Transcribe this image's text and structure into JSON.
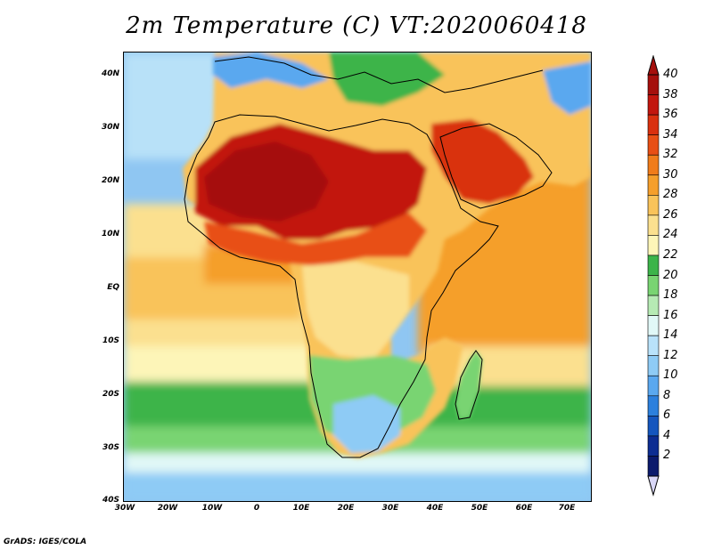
{
  "title": "2m Temperature (C) VT:2020060418",
  "credit": "GrADS: IGES/COLA",
  "axes": {
    "lat_labels": [
      "40N",
      "30N",
      "20N",
      "10N",
      "EQ",
      "10S",
      "20S",
      "30S",
      "40S"
    ],
    "lon_labels": [
      "30W",
      "20W",
      "10W",
      "0",
      "10E",
      "20E",
      "30E",
      "40E",
      "50E",
      "60E",
      "70E"
    ],
    "lat_range": [
      -40,
      45
    ],
    "lon_range": [
      -30,
      75
    ]
  },
  "colorbar": {
    "labels": [
      "40",
      "38",
      "36",
      "34",
      "32",
      "30",
      "28",
      "26",
      "24",
      "22",
      "20",
      "18",
      "16",
      "14",
      "12",
      "10",
      "8",
      "6",
      "4",
      "2"
    ],
    "colors": [
      "#a50f0c",
      "#c2160e",
      "#d9300f",
      "#e84f15",
      "#f07c1b",
      "#f59f2c",
      "#f9c35a",
      "#fbe08f",
      "#fdf5b8",
      "#3cb44a",
      "#79d472",
      "#b6eab4",
      "#e1f8f7",
      "#b9e2fa",
      "#8ecbf5",
      "#5aa8ef",
      "#2c80dd",
      "#1556be",
      "#0d2d92",
      "#0b1a6c"
    ],
    "min_arrow_color": "#d9d7f7"
  },
  "map": {
    "variable": "2m Temperature",
    "units": "C",
    "valid_time": "2020060418",
    "region": "Africa"
  }
}
